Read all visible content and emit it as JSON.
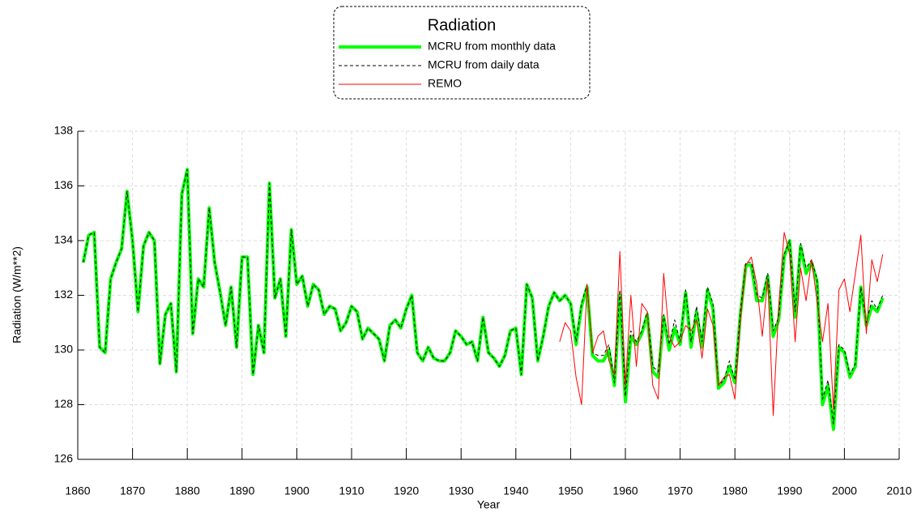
{
  "chart_data": {
    "type": "line",
    "legend_title": "Radiation",
    "x_label": "Year",
    "y_label": "Radiation (W/m**2)",
    "xlim": [
      1860,
      2010
    ],
    "xticks": [
      1860,
      1870,
      1880,
      1890,
      1900,
      1910,
      1920,
      1930,
      1940,
      1950,
      1960,
      1970,
      1980,
      1990,
      2000,
      2010
    ],
    "ylim": [
      126,
      138
    ],
    "yticks": [
      126,
      128,
      130,
      132,
      134,
      136,
      138
    ],
    "grid": true,
    "legend": "top",
    "x": [
      1861,
      1862,
      1863,
      1864,
      1865,
      1866,
      1867,
      1868,
      1869,
      1870,
      1871,
      1872,
      1873,
      1874,
      1875,
      1876,
      1877,
      1878,
      1879,
      1880,
      1881,
      1882,
      1883,
      1884,
      1885,
      1886,
      1887,
      1888,
      1889,
      1890,
      1891,
      1892,
      1893,
      1894,
      1895,
      1896,
      1897,
      1898,
      1899,
      1900,
      1901,
      1902,
      1903,
      1904,
      1905,
      1906,
      1907,
      1908,
      1909,
      1910,
      1911,
      1912,
      1913,
      1914,
      1915,
      1916,
      1917,
      1918,
      1919,
      1920,
      1921,
      1922,
      1923,
      1924,
      1925,
      1926,
      1927,
      1928,
      1929,
      1930,
      1931,
      1932,
      1933,
      1934,
      1935,
      1936,
      1937,
      1938,
      1939,
      1940,
      1941,
      1942,
      1943,
      1944,
      1945,
      1946,
      1947,
      1948,
      1949,
      1950,
      1951,
      1952,
      1953,
      1954,
      1955,
      1956,
      1957,
      1958,
      1959,
      1960,
      1961,
      1962,
      1963,
      1964,
      1965,
      1966,
      1967,
      1968,
      1969,
      1970,
      1971,
      1972,
      1973,
      1974,
      1975,
      1976,
      1977,
      1978,
      1979,
      1980,
      1981,
      1982,
      1983,
      1984,
      1985,
      1986,
      1987,
      1988,
      1989,
      1990,
      1991,
      1992,
      1993,
      1994,
      1995,
      1996,
      1997,
      1998,
      1999,
      2000,
      2001,
      2002,
      2003,
      2004,
      2005,
      2006,
      2007
    ],
    "series": [
      {
        "name": "MCRU from monthly data",
        "color": "#00ff00",
        "width": 4,
        "dash": "none",
        "values": [
          133.2,
          134.2,
          134.3,
          130.1,
          129.9,
          132.6,
          133.2,
          133.7,
          135.8,
          134.0,
          131.4,
          133.8,
          134.3,
          134.0,
          129.5,
          131.3,
          131.7,
          129.2,
          135.7,
          136.6,
          130.6,
          132.6,
          132.3,
          135.2,
          133.2,
          132.1,
          130.9,
          132.3,
          130.1,
          133.4,
          133.4,
          129.1,
          130.9,
          129.9,
          136.1,
          131.9,
          132.6,
          130.5,
          134.4,
          132.4,
          132.7,
          131.6,
          132.4,
          132.2,
          131.3,
          131.6,
          131.5,
          130.7,
          131.0,
          131.6,
          131.4,
          130.4,
          130.8,
          130.6,
          130.4,
          129.6,
          130.9,
          131.1,
          130.8,
          131.5,
          132.0,
          129.9,
          129.6,
          130.1,
          129.7,
          129.6,
          129.6,
          129.9,
          130.7,
          130.5,
          130.2,
          130.3,
          129.6,
          131.2,
          129.9,
          129.7,
          129.4,
          129.8,
          130.7,
          130.8,
          129.1,
          132.4,
          131.9,
          129.6,
          130.5,
          131.6,
          132.1,
          131.8,
          132.0,
          131.7,
          130.2,
          131.6,
          132.3,
          129.8,
          129.6,
          129.6,
          130.0,
          128.7,
          132.0,
          128.1,
          130.5,
          130.2,
          130.6,
          131.3,
          129.2,
          129.0,
          131.2,
          130.0,
          130.8,
          130.2,
          132.1,
          130.1,
          131.4,
          130.1,
          132.2,
          131.5,
          128.6,
          128.8,
          129.4,
          128.8,
          131.3,
          133.1,
          133.1,
          131.8,
          131.8,
          132.7,
          130.5,
          131.1,
          133.4,
          134.0,
          131.2,
          133.8,
          132.8,
          133.2,
          132.5,
          128.0,
          128.7,
          127.1,
          130.1,
          129.9,
          129.0,
          129.4,
          132.3,
          130.9,
          131.6,
          131.4,
          131.9
        ]
      },
      {
        "name": "MCRU from daily data",
        "color": "#000000",
        "width": 1,
        "dash": "4,3",
        "values": [
          133.2,
          134.2,
          134.3,
          130.1,
          129.9,
          132.6,
          133.2,
          133.7,
          135.8,
          134.0,
          131.4,
          133.8,
          134.3,
          134.0,
          129.5,
          131.3,
          131.7,
          129.2,
          135.7,
          136.6,
          130.6,
          132.6,
          132.3,
          135.2,
          133.2,
          132.1,
          130.9,
          132.3,
          130.1,
          133.4,
          133.4,
          129.1,
          130.9,
          129.9,
          136.1,
          131.9,
          132.6,
          130.5,
          134.4,
          132.4,
          132.7,
          131.6,
          132.4,
          132.2,
          131.3,
          131.6,
          131.5,
          130.7,
          131.0,
          131.6,
          131.4,
          130.4,
          130.8,
          130.6,
          130.4,
          129.6,
          130.9,
          131.1,
          130.8,
          131.5,
          132.0,
          129.9,
          129.6,
          130.1,
          129.7,
          129.6,
          129.6,
          129.9,
          130.7,
          130.5,
          130.2,
          130.3,
          129.6,
          131.2,
          129.9,
          129.7,
          129.4,
          129.8,
          130.7,
          130.8,
          129.1,
          132.4,
          131.9,
          129.6,
          130.5,
          131.6,
          132.1,
          131.8,
          132.0,
          131.7,
          130.3,
          131.7,
          132.4,
          129.9,
          129.8,
          129.8,
          130.2,
          128.8,
          132.2,
          128.3,
          130.7,
          130.3,
          130.7,
          131.4,
          129.4,
          129.2,
          131.3,
          130.2,
          131.1,
          130.3,
          132.2,
          130.3,
          131.6,
          130.3,
          132.3,
          131.7,
          128.7,
          128.9,
          129.6,
          128.9,
          131.4,
          133.2,
          133.2,
          132.0,
          131.9,
          132.8,
          130.7,
          131.2,
          133.5,
          134.0,
          131.4,
          133.9,
          133.0,
          133.3,
          132.6,
          128.2,
          128.9,
          127.3,
          130.2,
          130.0,
          129.1,
          129.5,
          132.3,
          131.0,
          131.8,
          131.5,
          132.0
        ]
      },
      {
        "name": "REMO",
        "color": "#ff0000",
        "width": 1,
        "dash": "none",
        "x": [
          1948,
          1949,
          1950,
          1951,
          1952,
          1953,
          1954,
          1955,
          1956,
          1957,
          1958,
          1959,
          1960,
          1961,
          1962,
          1963,
          1964,
          1965,
          1966,
          1967,
          1968,
          1969,
          1970,
          1971,
          1972,
          1973,
          1974,
          1975,
          1976,
          1977,
          1978,
          1979,
          1980,
          1981,
          1982,
          1983,
          1984,
          1985,
          1986,
          1987,
          1988,
          1989,
          1990,
          1991,
          1992,
          1993,
          1994,
          1995,
          1996,
          1997,
          1998,
          1999,
          2000,
          2001,
          2002,
          2003,
          2004,
          2005,
          2006,
          2007
        ],
        "values": [
          130.3,
          131.0,
          130.7,
          129.0,
          128.0,
          132.4,
          129.9,
          130.5,
          130.7,
          129.6,
          129.1,
          133.6,
          128.7,
          132.0,
          129.4,
          131.7,
          131.4,
          128.7,
          128.2,
          132.8,
          130.5,
          130.1,
          130.3,
          130.9,
          130.7,
          131.1,
          129.7,
          131.5,
          130.9,
          128.7,
          129.0,
          129.1,
          128.2,
          131.1,
          133.1,
          133.4,
          132.4,
          130.5,
          132.6,
          127.6,
          131.6,
          134.3,
          133.5,
          130.3,
          133.0,
          131.8,
          133.3,
          131.8,
          130.3,
          131.7,
          127.8,
          132.2,
          132.6,
          131.4,
          132.8,
          134.2,
          130.6,
          133.3,
          132.5,
          133.5
        ]
      }
    ]
  }
}
